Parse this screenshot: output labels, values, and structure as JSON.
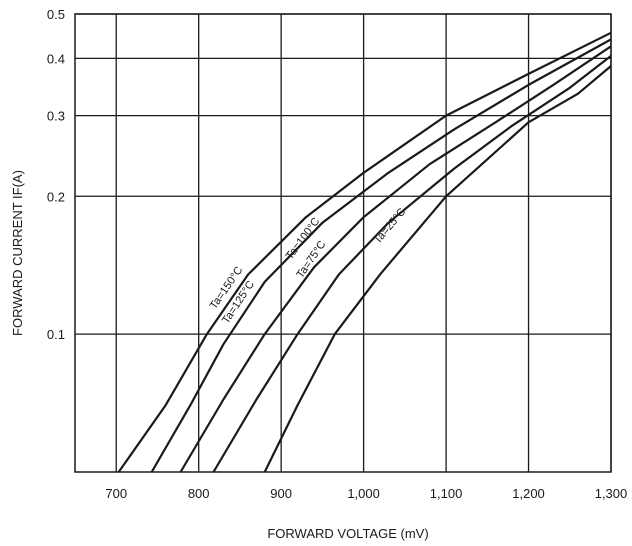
{
  "chart_data": {
    "type": "line",
    "title": "",
    "xlabel": "FORWARD VOLTAGE (mV)",
    "ylabel": "FORWARD CURRENT IF(A)",
    "xlim": [
      650,
      1300
    ],
    "ylim": [
      0.05,
      0.5
    ],
    "yscale": "log",
    "grid": true,
    "legend": "none",
    "x_ticks": [
      700,
      800,
      900,
      1000,
      1100,
      1200,
      1300
    ],
    "x_tick_labels": [
      "700",
      "800",
      "900",
      "1,000",
      "1,100",
      "1,200",
      "1,300"
    ],
    "y_ticks": [
      0.1,
      0.2,
      0.3,
      0.4,
      0.5
    ],
    "y_tick_labels": [
      "0.1",
      "0.2",
      "0.3",
      "0.4",
      "0.5"
    ],
    "series": [
      {
        "name": "Ta=150°C",
        "label_at": {
          "x": 820,
          "y": 0.113
        },
        "points": [
          [
            703,
            0.05
          ],
          [
            760,
            0.07
          ],
          [
            810,
            0.1
          ],
          [
            860,
            0.135
          ],
          [
            930,
            0.18
          ],
          [
            1000,
            0.225
          ],
          [
            1100,
            0.3
          ],
          [
            1200,
            0.37
          ],
          [
            1300,
            0.455
          ]
        ]
      },
      {
        "name": "Ta=125°C",
        "label_at": {
          "x": 835,
          "y": 0.105
        },
        "points": [
          [
            743,
            0.05
          ],
          [
            790,
            0.07
          ],
          [
            830,
            0.095
          ],
          [
            880,
            0.13
          ],
          [
            950,
            0.175
          ],
          [
            1030,
            0.225
          ],
          [
            1110,
            0.28
          ],
          [
            1200,
            0.35
          ],
          [
            1300,
            0.44
          ]
        ]
      },
      {
        "name": "Ta=100°C",
        "label_at": {
          "x": 912,
          "y": 0.145
        },
        "points": [
          [
            778,
            0.05
          ],
          [
            830,
            0.072
          ],
          [
            880,
            0.1
          ],
          [
            940,
            0.14
          ],
          [
            1000,
            0.18
          ],
          [
            1080,
            0.235
          ],
          [
            1160,
            0.29
          ],
          [
            1230,
            0.35
          ],
          [
            1300,
            0.425
          ]
        ]
      },
      {
        "name": "Ta=75°C",
        "label_at": {
          "x": 925,
          "y": 0.132
        },
        "points": [
          [
            818,
            0.05
          ],
          [
            870,
            0.072
          ],
          [
            920,
            0.1
          ],
          [
            970,
            0.135
          ],
          [
            1030,
            0.175
          ],
          [
            1110,
            0.23
          ],
          [
            1180,
            0.285
          ],
          [
            1250,
            0.345
          ],
          [
            1300,
            0.405
          ]
        ]
      },
      {
        "name": "Ta=25°C",
        "label_at": {
          "x": 1018,
          "y": 0.157
        },
        "points": [
          [
            880,
            0.05
          ],
          [
            920,
            0.07
          ],
          [
            965,
            0.1
          ],
          [
            1020,
            0.135
          ],
          [
            1100,
            0.2
          ],
          [
            1200,
            0.29
          ],
          [
            1260,
            0.335
          ],
          [
            1300,
            0.385
          ]
        ]
      }
    ]
  }
}
